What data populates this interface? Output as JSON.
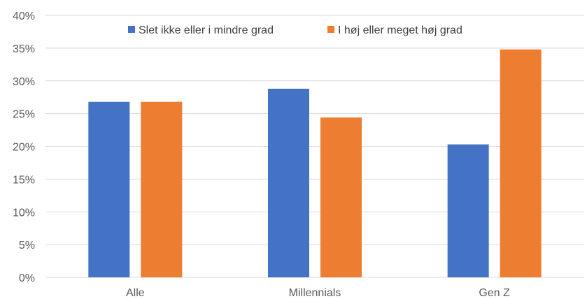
{
  "chart_data": {
    "type": "bar",
    "title": "",
    "xlabel": "",
    "ylabel": "",
    "categories": [
      "Alle",
      "Millennials",
      "Gen Z"
    ],
    "series": [
      {
        "name": "Slet ikke eller i mindre grad",
        "color": "#4472C4",
        "values": [
          26.8,
          28.8,
          20.3
        ]
      },
      {
        "name": "I høj eller meget høj grad",
        "color": "#ED7D31",
        "values": [
          26.8,
          24.4,
          34.8
        ]
      }
    ],
    "ylim": [
      0,
      40
    ],
    "yticks": [
      "0%",
      "5%",
      "10%",
      "15%",
      "20%",
      "25%",
      "30%",
      "35%",
      "40%"
    ],
    "grid": true,
    "gridline_color": "#D9D9D9",
    "legend_position": "top-center"
  }
}
